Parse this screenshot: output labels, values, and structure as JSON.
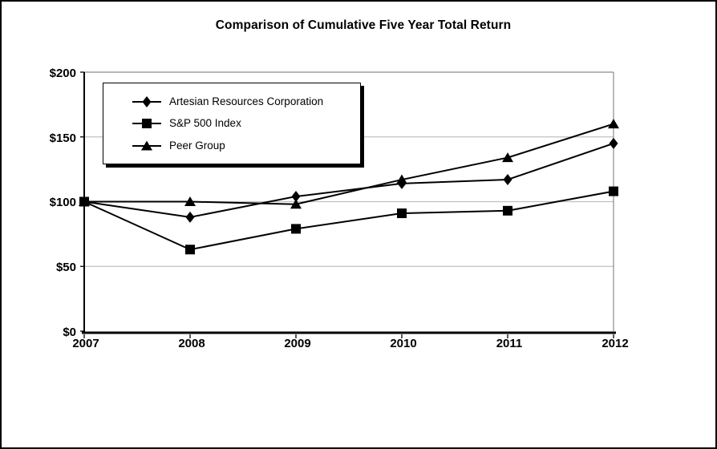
{
  "chart_data": {
    "type": "line",
    "title": "Comparison of Cumulative Five Year Total Return",
    "categories": [
      "2007",
      "2008",
      "2009",
      "2010",
      "2011",
      "2012"
    ],
    "series": [
      {
        "name": "Artesian Resources Corporation",
        "marker": "diamond",
        "values": [
          100,
          88,
          104,
          114,
          117,
          145
        ]
      },
      {
        "name": "S&P 500 Index",
        "marker": "square",
        "values": [
          100,
          63,
          79,
          91,
          93,
          108
        ]
      },
      {
        "name": "Peer Group",
        "marker": "triangle",
        "values": [
          100,
          100,
          98,
          117,
          134,
          160
        ]
      }
    ],
    "y_axis": {
      "min": 0,
      "max": 200,
      "tick_interval": 50,
      "tick_labels": [
        "$200",
        "$150",
        "$100",
        "$50",
        "$0"
      ]
    },
    "grid": "horizontal-only",
    "legend_position": "top-left-inside",
    "colors": {
      "series": "#000000",
      "gridline": "#c0c0c0",
      "frame": "#8c8c8c",
      "background": "#ffffff",
      "border": "#000000"
    }
  }
}
